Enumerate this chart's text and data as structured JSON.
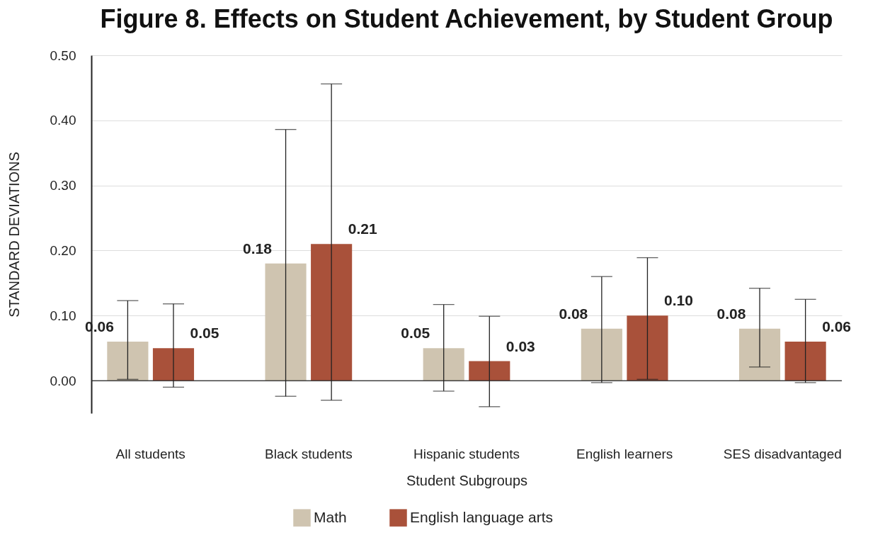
{
  "chart_data": {
    "type": "bar",
    "title": "Figure 8. Effects on Student Achievement, by Student Group",
    "xlabel": "Student Subgroups",
    "ylabel": "STANDARD DEVIATIONS",
    "categories": [
      "All students",
      "Black students",
      "Hispanic students",
      "English learners",
      "SES disadvantaged"
    ],
    "series": [
      {
        "name": "Math",
        "color": "#cfc4b0",
        "values": [
          0.06,
          0.18,
          0.05,
          0.08,
          0.08
        ],
        "value_labels": [
          "0.06",
          "0.18",
          "0.05",
          "0.08",
          "0.08"
        ],
        "errors": [
          [
            0.002,
            0.123
          ],
          [
            -0.024,
            0.386
          ],
          [
            -0.016,
            0.117
          ],
          [
            -0.003,
            0.16
          ],
          [
            0.021,
            0.142
          ]
        ]
      },
      {
        "name": "English language arts",
        "color": "#a9513a",
        "values": [
          0.05,
          0.21,
          0.03,
          0.1,
          0.06
        ],
        "value_labels": [
          "0.05",
          "0.21",
          "0.03",
          "0.10",
          "0.06"
        ],
        "errors": [
          [
            -0.01,
            0.118
          ],
          [
            -0.03,
            0.456
          ],
          [
            -0.04,
            0.099
          ],
          [
            0.002,
            0.189
          ],
          [
            -0.003,
            0.125
          ]
        ]
      }
    ],
    "ylim": [
      -0.05,
      0.5
    ],
    "yticks": [
      {
        "value": 0,
        "label": "0.00"
      },
      {
        "value": 0.1,
        "label": "0.10"
      },
      {
        "value": 0.2,
        "label": "0.20"
      },
      {
        "value": 0.3,
        "label": "0.30"
      },
      {
        "value": 0.4,
        "label": "0.40"
      },
      {
        "value": 0.5,
        "label": "0.50"
      }
    ],
    "grid": "y",
    "legend": "bottom"
  }
}
